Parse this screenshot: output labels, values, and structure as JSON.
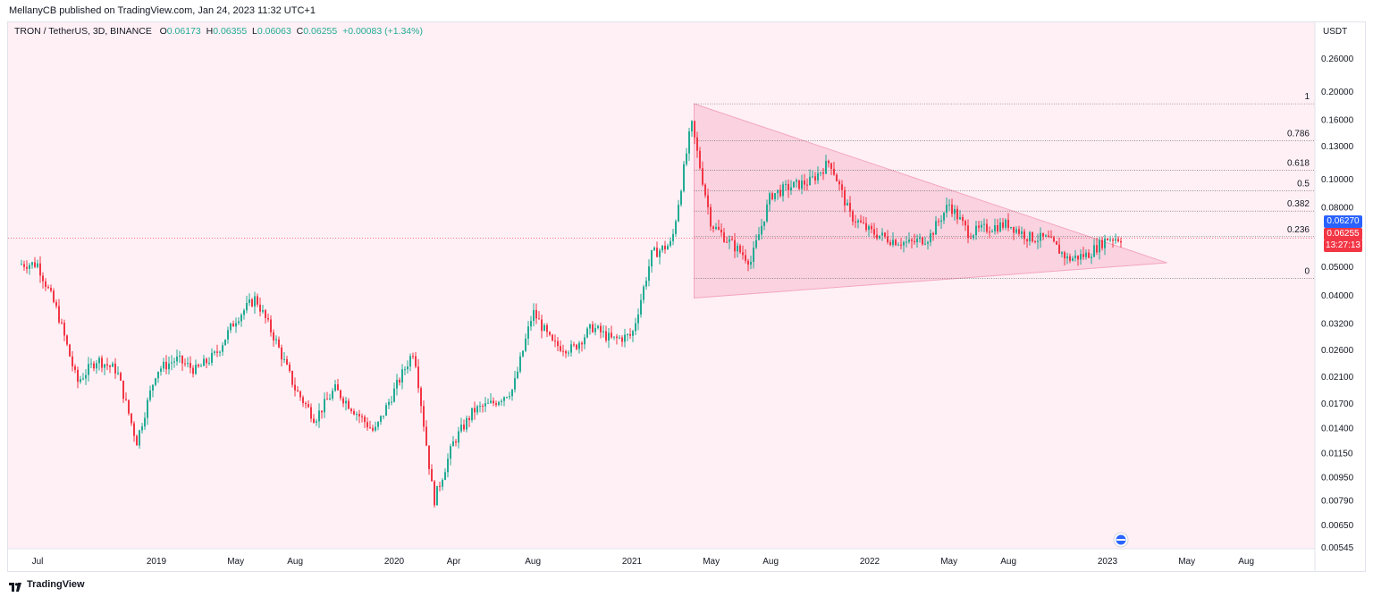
{
  "header": {
    "published": "MellanyCB published on TradingView.com, Jan 24, 2023 11:32 UTC+1"
  },
  "legend": {
    "symbol": "TRON / TetherUS, 3D, BINANCE",
    "o_label": "O",
    "o_value": "0.06173",
    "h_label": "H",
    "h_value": "0.06355",
    "l_label": "L",
    "l_value": "0.06063",
    "c_label": "C",
    "c_value": "0.06255",
    "change": "+0.00083 (+1.34%)"
  },
  "price_tags": {
    "blue_value": "0.06270",
    "last_value": "0.06255",
    "countdown": "13:27:13"
  },
  "footer": {
    "brand": "TradingView"
  },
  "colors": {
    "up": "#22ab94",
    "down": "#f23645",
    "background": "#fff0f5",
    "triangle_fill": "#f8c8d8",
    "blue_tag": "#2962ff",
    "last_tag": "#f23645"
  },
  "chart_data": {
    "type": "candlestick",
    "scale": "log",
    "currency": "USDT",
    "y_ticks": [
      "0.26000",
      "0.20000",
      "0.16000",
      "0.13000",
      "0.10000",
      "0.08000",
      "0.06270",
      "0.05000",
      "0.04000",
      "0.03200",
      "0.02600",
      "0.02100",
      "0.01700",
      "0.01400",
      "0.01150",
      "0.00950",
      "0.00790",
      "0.00650",
      "0.00545"
    ],
    "x_ticks": [
      "Jul",
      "2019",
      "May",
      "Aug",
      "2020",
      "Apr",
      "Aug",
      "2021",
      "May",
      "Aug",
      "2022",
      "May",
      "Aug",
      "2023",
      "May",
      "Aug"
    ],
    "fib_levels": [
      {
        "label": "1",
        "price": 0.181
      },
      {
        "label": "0.786",
        "price": 0.135
      },
      {
        "label": "0.618",
        "price": 0.107
      },
      {
        "label": "0.5",
        "price": 0.091
      },
      {
        "label": "0.382",
        "price": 0.0775
      },
      {
        "label": "0.236",
        "price": 0.0633
      },
      {
        "label": "0",
        "price": 0.0455
      }
    ],
    "triangle": {
      "apex_top": {
        "date": "Apr 2021",
        "price": 0.181
      },
      "apex_bottom": {
        "date": "Apr 2021",
        "price": 0.039
      },
      "tip": {
        "date": "Apr 2023",
        "price": 0.0515
      }
    },
    "price_path": [
      {
        "date": "Jul 2018",
        "price": 0.051
      },
      {
        "date": "Aug 2018",
        "price": 0.035
      },
      {
        "date": "Sep 2018",
        "price": 0.02
      },
      {
        "date": "Oct 2018",
        "price": 0.024
      },
      {
        "date": "Nov 2018",
        "price": 0.022
      },
      {
        "date": "Dec 2018",
        "price": 0.0125
      },
      {
        "date": "Jan 2019",
        "price": 0.022
      },
      {
        "date": "Feb 2019",
        "price": 0.024
      },
      {
        "date": "Mar 2019",
        "price": 0.022
      },
      {
        "date": "Apr 2019",
        "price": 0.025
      },
      {
        "date": "May 2019",
        "price": 0.033
      },
      {
        "date": "Jun 2019",
        "price": 0.039
      },
      {
        "date": "Jul 2019",
        "price": 0.028
      },
      {
        "date": "Aug 2019",
        "price": 0.019
      },
      {
        "date": "Sep 2019",
        "price": 0.015
      },
      {
        "date": "Oct 2019",
        "price": 0.019
      },
      {
        "date": "Nov 2019",
        "price": 0.016
      },
      {
        "date": "Dec 2019",
        "price": 0.0135
      },
      {
        "date": "Feb 2020",
        "price": 0.026
      },
      {
        "date": "Mar 2020",
        "price": 0.0078
      },
      {
        "date": "Apr 2020",
        "price": 0.0125
      },
      {
        "date": "May 2020",
        "price": 0.016
      },
      {
        "date": "Jun 2020",
        "price": 0.017
      },
      {
        "date": "Jul 2020",
        "price": 0.019
      },
      {
        "date": "Aug 2020",
        "price": 0.035
      },
      {
        "date": "Sep 2020",
        "price": 0.027
      },
      {
        "date": "Oct 2020",
        "price": 0.026
      },
      {
        "date": "Nov 2020",
        "price": 0.031
      },
      {
        "date": "Dec 2020",
        "price": 0.028
      },
      {
        "date": "Jan 2021",
        "price": 0.029
      },
      {
        "date": "Feb 2021",
        "price": 0.055
      },
      {
        "date": "Mar 2021",
        "price": 0.06
      },
      {
        "date": "Apr 2021",
        "price": 0.155
      },
      {
        "date": "May 2021",
        "price": 0.07
      },
      {
        "date": "Jun 2021",
        "price": 0.06
      },
      {
        "date": "Jul 2021",
        "price": 0.052
      },
      {
        "date": "Aug 2021",
        "price": 0.088
      },
      {
        "date": "Sep 2021",
        "price": 0.094
      },
      {
        "date": "Oct 2021",
        "price": 0.098
      },
      {
        "date": "Nov 2021",
        "price": 0.115
      },
      {
        "date": "Dec 2021",
        "price": 0.075
      },
      {
        "date": "Jan 2022",
        "price": 0.066
      },
      {
        "date": "Feb 2022",
        "price": 0.062
      },
      {
        "date": "Mar 2022",
        "price": 0.06
      },
      {
        "date": "Apr 2022",
        "price": 0.063
      },
      {
        "date": "May 2022",
        "price": 0.082
      },
      {
        "date": "Jun 2022",
        "price": 0.065
      },
      {
        "date": "Jul 2022",
        "price": 0.068
      },
      {
        "date": "Aug 2022",
        "price": 0.07
      },
      {
        "date": "Sep 2022",
        "price": 0.063
      },
      {
        "date": "Oct 2022",
        "price": 0.062
      },
      {
        "date": "Nov 2022",
        "price": 0.053
      },
      {
        "date": "Dec 2022",
        "price": 0.055
      },
      {
        "date": "Jan 2023",
        "price": 0.0626
      }
    ]
  }
}
